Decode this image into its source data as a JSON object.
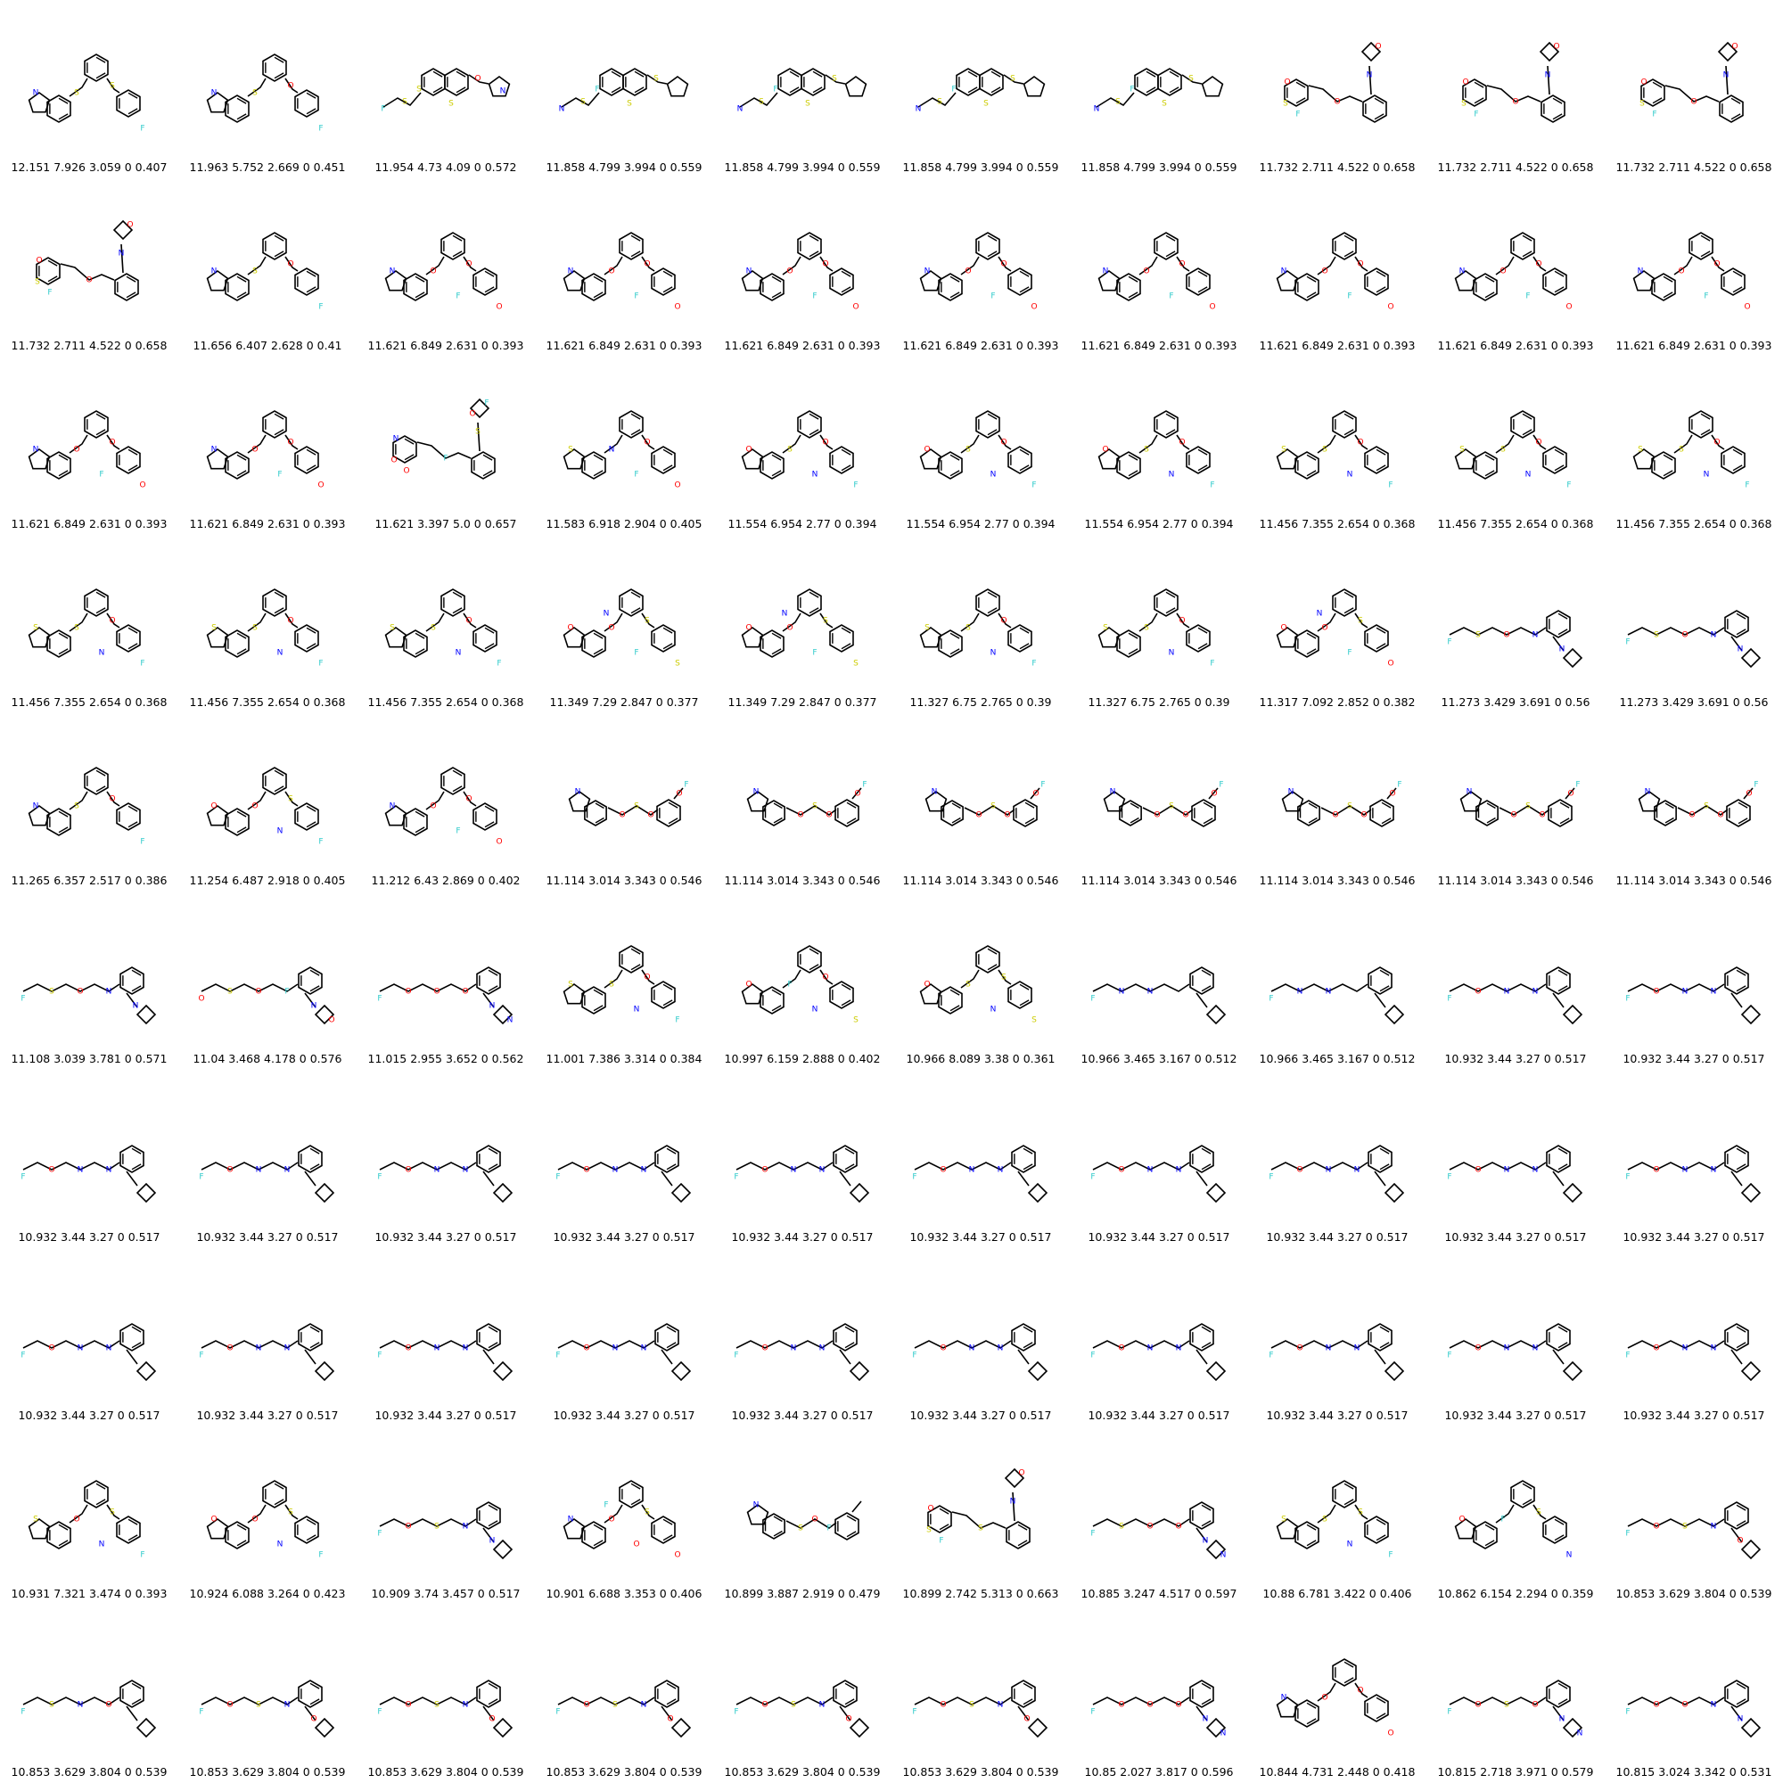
{
  "colors": {
    "bond": "#000000",
    "oxygen": "#ff0000",
    "sulfur": "#cccc00",
    "nitrogen": "#0000ff",
    "fluorine": "#33cccc"
  },
  "cells": [
    {
      "label": "12.151 7.926 3.059 0 0.407",
      "motif": "tri",
      "atoms": [
        "S",
        "S",
        "N",
        "F"
      ]
    },
    {
      "label": "11.963 5.752 2.669 0 0.451",
      "motif": "tri",
      "atoms": [
        "S",
        "O",
        "N",
        "F"
      ]
    },
    {
      "label": "11.954 4.73 4.09 0 0.572",
      "motif": "naph",
      "atoms": [
        "S",
        "O",
        "S",
        "S",
        "F",
        "N"
      ]
    },
    {
      "label": "11.858 4.799 3.994 0 0.559",
      "motif": "naph",
      "atoms": [
        "S",
        "S",
        "S",
        "F",
        "N"
      ]
    },
    {
      "label": "11.858 4.799 3.994 0 0.559",
      "motif": "naph",
      "atoms": [
        "S",
        "S",
        "S",
        "F",
        "N"
      ]
    },
    {
      "label": "11.858 4.799 3.994 0 0.559",
      "motif": "naph",
      "atoms": [
        "S",
        "S",
        "S",
        "F",
        "N"
      ]
    },
    {
      "label": "11.858 4.799 3.994 0 0.559",
      "motif": "naph",
      "atoms": [
        "S",
        "S",
        "S",
        "F",
        "N"
      ]
    },
    {
      "label": "11.732 2.711 4.522 0 0.658",
      "motif": "oxa",
      "atoms": [
        "O",
        "S",
        "F",
        "O",
        "N",
        "O"
      ]
    },
    {
      "label": "11.732 2.711 4.522 0 0.658",
      "motif": "oxa",
      "atoms": [
        "O",
        "S",
        "F",
        "O",
        "N",
        "O"
      ]
    },
    {
      "label": "11.732 2.711 4.522 0 0.658",
      "motif": "oxa",
      "atoms": [
        "O",
        "S",
        "F",
        "O",
        "N",
        "O"
      ]
    },
    {
      "label": "11.732 2.711 4.522 0 0.658",
      "motif": "oxa",
      "atoms": [
        "O",
        "S",
        "F",
        "O",
        "N",
        "O"
      ]
    },
    {
      "label": "11.656 6.407 2.628 0 0.41",
      "motif": "tri",
      "atoms": [
        "S",
        "O",
        "N",
        "F"
      ]
    },
    {
      "label": "11.621 6.849 2.631 0 0.393",
      "motif": "tri",
      "atoms": [
        "O",
        "O",
        "N",
        "O",
        "F"
      ]
    },
    {
      "label": "11.621 6.849 2.631 0 0.393",
      "motif": "tri",
      "atoms": [
        "O",
        "O",
        "N",
        "O",
        "F"
      ]
    },
    {
      "label": "11.621 6.849 2.631 0 0.393",
      "motif": "tri",
      "atoms": [
        "O",
        "O",
        "N",
        "O",
        "F"
      ]
    },
    {
      "label": "11.621 6.849 2.631 0 0.393",
      "motif": "tri",
      "atoms": [
        "O",
        "O",
        "N",
        "O",
        "F"
      ]
    },
    {
      "label": "11.621 6.849 2.631 0 0.393",
      "motif": "tri",
      "atoms": [
        "O",
        "O",
        "N",
        "O",
        "F"
      ]
    },
    {
      "label": "11.621 6.849 2.631 0 0.393",
      "motif": "tri",
      "atoms": [
        "O",
        "O",
        "N",
        "O",
        "F"
      ]
    },
    {
      "label": "11.621 6.849 2.631 0 0.393",
      "motif": "tri",
      "atoms": [
        "O",
        "O",
        "N",
        "O",
        "F"
      ]
    },
    {
      "label": "11.621 6.849 2.631 0 0.393",
      "motif": "tri",
      "atoms": [
        "O",
        "O",
        "N",
        "O",
        "F"
      ]
    },
    {
      "label": "11.621 6.849 2.631 0 0.393",
      "motif": "tri",
      "atoms": [
        "O",
        "O",
        "N",
        "O",
        "F"
      ]
    },
    {
      "label": "11.621 6.849 2.631 0 0.393",
      "motif": "tri",
      "atoms": [
        "O",
        "O",
        "N",
        "O",
        "F"
      ]
    },
    {
      "label": "11.621 3.397 5.0 0 0.657",
      "motif": "oxa",
      "atoms": [
        "N",
        "O",
        "O",
        "F",
        "S",
        "F",
        "O"
      ]
    },
    {
      "label": "11.583 6.918 2.904 0 0.405",
      "motif": "tri",
      "atoms": [
        "N",
        "O",
        "S",
        "O",
        "F"
      ]
    },
    {
      "label": "11.554 6.954 2.77 0 0.394",
      "motif": "tri",
      "atoms": [
        "S",
        "O",
        "O",
        "F",
        "N"
      ]
    },
    {
      "label": "11.554 6.954 2.77 0 0.394",
      "motif": "tri",
      "atoms": [
        "S",
        "O",
        "O",
        "F",
        "N"
      ]
    },
    {
      "label": "11.554 6.954 2.77 0 0.394",
      "motif": "tri",
      "atoms": [
        "S",
        "O",
        "O",
        "F",
        "N"
      ]
    },
    {
      "label": "11.456 7.355 2.654 0 0.368",
      "motif": "tri",
      "atoms": [
        "S",
        "O",
        "S",
        "F",
        "N"
      ]
    },
    {
      "label": "11.456 7.355 2.654 0 0.368",
      "motif": "tri",
      "atoms": [
        "S",
        "O",
        "S",
        "F",
        "N"
      ]
    },
    {
      "label": "11.456 7.355 2.654 0 0.368",
      "motif": "tri",
      "atoms": [
        "S",
        "O",
        "S",
        "F",
        "N"
      ]
    },
    {
      "label": "11.456 7.355 2.654 0 0.368",
      "motif": "tri",
      "atoms": [
        "S",
        "O",
        "S",
        "F",
        "N"
      ]
    },
    {
      "label": "11.456 7.355 2.654 0 0.368",
      "motif": "tri",
      "atoms": [
        "S",
        "O",
        "S",
        "F",
        "N"
      ]
    },
    {
      "label": "11.456 7.355 2.654 0 0.368",
      "motif": "tri",
      "atoms": [
        "S",
        "O",
        "S",
        "F",
        "N"
      ]
    },
    {
      "label": "11.349 7.29 2.847 0 0.377",
      "motif": "tri",
      "atoms": [
        "O",
        "S",
        "O",
        "S",
        "F",
        "N"
      ]
    },
    {
      "label": "11.349 7.29 2.847 0 0.377",
      "motif": "tri",
      "atoms": [
        "O",
        "S",
        "O",
        "S",
        "F",
        "N"
      ]
    },
    {
      "label": "11.327 6.75 2.765 0 0.39",
      "motif": "tri",
      "atoms": [
        "S",
        "O",
        "S",
        "F",
        "N"
      ]
    },
    {
      "label": "11.327 6.75 2.765 0 0.39",
      "motif": "tri",
      "atoms": [
        "S",
        "O",
        "S",
        "F",
        "N"
      ]
    },
    {
      "label": "11.317 7.092 2.852 0 0.382",
      "motif": "tri",
      "atoms": [
        "O",
        "S",
        "O",
        "O",
        "F",
        "N"
      ]
    },
    {
      "label": "11.273 3.429 3.691 0 0.56",
      "motif": "chain",
      "atoms": [
        "F",
        "S",
        "O",
        "N",
        "N"
      ]
    },
    {
      "label": "11.273 3.429 3.691 0 0.56",
      "motif": "chain",
      "atoms": [
        "F",
        "S",
        "O",
        "N",
        "N"
      ]
    },
    {
      "label": "11.265 6.357 2.517 0 0.386",
      "motif": "tri",
      "atoms": [
        "S",
        "O",
        "N",
        "F"
      ]
    },
    {
      "label": "11.254 6.487 2.918 0 0.405",
      "motif": "tri",
      "atoms": [
        "O",
        "S",
        "O",
        "F",
        "N"
      ]
    },
    {
      "label": "11.212 6.43 2.869 0 0.402",
      "motif": "tri",
      "atoms": [
        "O",
        "O",
        "N",
        "O",
        "F"
      ]
    },
    {
      "label": "11.114 3.014 3.343 0 0.546",
      "motif": "pair",
      "atoms": [
        "N",
        "O",
        "S",
        "O",
        "O",
        "F"
      ]
    },
    {
      "label": "11.114 3.014 3.343 0 0.546",
      "motif": "pair",
      "atoms": [
        "N",
        "O",
        "S",
        "O",
        "O",
        "F"
      ]
    },
    {
      "label": "11.114 3.014 3.343 0 0.546",
      "motif": "pair",
      "atoms": [
        "N",
        "O",
        "S",
        "O",
        "O",
        "F"
      ]
    },
    {
      "label": "11.114 3.014 3.343 0 0.546",
      "motif": "pair",
      "atoms": [
        "N",
        "O",
        "S",
        "O",
        "O",
        "F"
      ]
    },
    {
      "label": "11.114 3.014 3.343 0 0.546",
      "motif": "pair",
      "atoms": [
        "N",
        "O",
        "S",
        "O",
        "O",
        "F"
      ]
    },
    {
      "label": "11.114 3.014 3.343 0 0.546",
      "motif": "pair",
      "atoms": [
        "N",
        "O",
        "S",
        "O",
        "O",
        "F"
      ]
    },
    {
      "label": "11.114 3.014 3.343 0 0.546",
      "motif": "pair",
      "atoms": [
        "N",
        "O",
        "S",
        "O",
        "O",
        "F"
      ]
    },
    {
      "label": "11.108 3.039 3.781 0 0.571",
      "motif": "chain",
      "atoms": [
        "F",
        "S",
        "O",
        "N",
        "N"
      ]
    },
    {
      "label": "11.04 3.468 4.178 0 0.576",
      "motif": "chain",
      "atoms": [
        "O",
        "S",
        "O",
        "F",
        "N",
        "O"
      ]
    },
    {
      "label": "11.015 2.955 3.652 0 0.562",
      "motif": "chain",
      "atoms": [
        "F",
        "O",
        "O",
        "O",
        "N",
        "N"
      ]
    },
    {
      "label": "11.001 7.386 3.314 0 0.384",
      "motif": "tri",
      "atoms": [
        "S",
        "O",
        "S",
        "F",
        "N"
      ]
    },
    {
      "label": "10.997 6.159 2.888 0 0.402",
      "motif": "tri",
      "atoms": [
        "F",
        "O",
        "O",
        "S",
        "N"
      ]
    },
    {
      "label": "10.966 8.089 3.38 0 0.361",
      "motif": "tri",
      "atoms": [
        "S",
        "S",
        "O",
        "S",
        "N"
      ]
    },
    {
      "label": "10.966 3.465 3.167 0 0.512",
      "motif": "chain",
      "atoms": [
        "F",
        "N",
        "N"
      ]
    },
    {
      "label": "10.966 3.465 3.167 0 0.512",
      "motif": "chain",
      "atoms": [
        "F",
        "N",
        "N"
      ]
    },
    {
      "label": "10.932 3.44 3.27 0 0.517",
      "motif": "chain",
      "atoms": [
        "F",
        "O",
        "N",
        "N"
      ]
    },
    {
      "label": "10.932 3.44 3.27 0 0.517",
      "motif": "chain",
      "atoms": [
        "F",
        "O",
        "N",
        "N"
      ]
    },
    {
      "label": "10.932 3.44 3.27 0 0.517",
      "motif": "chain",
      "atoms": [
        "F",
        "O",
        "N",
        "N"
      ]
    },
    {
      "label": "10.932 3.44 3.27 0 0.517",
      "motif": "chain",
      "atoms": [
        "F",
        "O",
        "N",
        "N"
      ]
    },
    {
      "label": "10.932 3.44 3.27 0 0.517",
      "motif": "chain",
      "atoms": [
        "F",
        "O",
        "N",
        "N"
      ]
    },
    {
      "label": "10.932 3.44 3.27 0 0.517",
      "motif": "chain",
      "atoms": [
        "F",
        "O",
        "N",
        "N"
      ]
    },
    {
      "label": "10.932 3.44 3.27 0 0.517",
      "motif": "chain",
      "atoms": [
        "F",
        "O",
        "N",
        "N"
      ]
    },
    {
      "label": "10.932 3.44 3.27 0 0.517",
      "motif": "chain",
      "atoms": [
        "F",
        "O",
        "N",
        "N"
      ]
    },
    {
      "label": "10.932 3.44 3.27 0 0.517",
      "motif": "chain",
      "atoms": [
        "F",
        "O",
        "N",
        "N"
      ]
    },
    {
      "label": "10.932 3.44 3.27 0 0.517",
      "motif": "chain",
      "atoms": [
        "F",
        "O",
        "N",
        "N"
      ]
    },
    {
      "label": "10.932 3.44 3.27 0 0.517",
      "motif": "chain",
      "atoms": [
        "F",
        "O",
        "N",
        "N"
      ]
    },
    {
      "label": "10.932 3.44 3.27 0 0.517",
      "motif": "chain",
      "atoms": [
        "F",
        "O",
        "N",
        "N"
      ]
    },
    {
      "label": "10.932 3.44 3.27 0 0.517",
      "motif": "chain",
      "atoms": [
        "F",
        "O",
        "N",
        "N"
      ]
    },
    {
      "label": "10.932 3.44 3.27 0 0.517",
      "motif": "chain",
      "atoms": [
        "F",
        "O",
        "N",
        "N"
      ]
    },
    {
      "label": "10.932 3.44 3.27 0 0.517",
      "motif": "chain",
      "atoms": [
        "F",
        "O",
        "N",
        "N"
      ]
    },
    {
      "label": "10.932 3.44 3.27 0 0.517",
      "motif": "chain",
      "atoms": [
        "F",
        "O",
        "N",
        "N"
      ]
    },
    {
      "label": "10.932 3.44 3.27 0 0.517",
      "motif": "chain",
      "atoms": [
        "F",
        "O",
        "N",
        "N"
      ]
    },
    {
      "label": "10.932 3.44 3.27 0 0.517",
      "motif": "chain",
      "atoms": [
        "F",
        "O",
        "N",
        "N"
      ]
    },
    {
      "label": "10.932 3.44 3.27 0 0.517",
      "motif": "chain",
      "atoms": [
        "F",
        "O",
        "N",
        "N"
      ]
    },
    {
      "label": "10.932 3.44 3.27 0 0.517",
      "motif": "chain",
      "atoms": [
        "F",
        "O",
        "N",
        "N"
      ]
    },
    {
      "label": "10.932 3.44 3.27 0 0.517",
      "motif": "chain",
      "atoms": [
        "F",
        "O",
        "N",
        "N"
      ]
    },
    {
      "label": "10.932 3.44 3.27 0 0.517",
      "motif": "chain",
      "atoms": [
        "F",
        "O",
        "N",
        "N"
      ]
    },
    {
      "label": "10.931 7.321 3.474 0 0.393",
      "motif": "tri",
      "atoms": [
        "O",
        "S",
        "S",
        "F",
        "N"
      ]
    },
    {
      "label": "10.924 6.088 3.264 0 0.423",
      "motif": "tri",
      "atoms": [
        "O",
        "S",
        "O",
        "F",
        "N"
      ]
    },
    {
      "label": "10.909 3.74 3.457 0 0.517",
      "motif": "chain",
      "atoms": [
        "F",
        "O",
        "S",
        "N",
        "N"
      ]
    },
    {
      "label": "10.901 6.688 3.353 0 0.406",
      "motif": "tri",
      "atoms": [
        "O",
        "S",
        "N",
        "O",
        "O",
        "F"
      ]
    },
    {
      "label": "10.899 3.887 2.919 0 0.479",
      "motif": "pair",
      "atoms": [
        "N",
        "S",
        "O",
        "F"
      ]
    },
    {
      "label": "10.899 2.742 5.313 0 0.663",
      "motif": "oxa",
      "atoms": [
        "O",
        "S",
        "F",
        "S",
        "N",
        "O"
      ]
    },
    {
      "label": "10.885 3.247 4.517 0 0.597",
      "motif": "chain",
      "atoms": [
        "F",
        "S",
        "O",
        "O",
        "N",
        "N"
      ]
    },
    {
      "label": "10.88 6.781 3.422 0 0.406",
      "motif": "tri",
      "atoms": [
        "S",
        "S",
        "S",
        "F",
        "N"
      ]
    },
    {
      "label": "10.862 6.154 2.294 0 0.359",
      "motif": "tri",
      "atoms": [
        "F",
        "S",
        "O",
        "N"
      ]
    },
    {
      "label": "10.853 3.629 3.804 0 0.539",
      "motif": "chain",
      "atoms": [
        "F",
        "O",
        "S",
        "N",
        "O"
      ]
    },
    {
      "label": "10.853 3.629 3.804 0 0.539",
      "motif": "chain",
      "atoms": [
        "F",
        "S",
        "N",
        "O"
      ]
    },
    {
      "label": "10.853 3.629 3.804 0 0.539",
      "motif": "chain",
      "atoms": [
        "F",
        "O",
        "S",
        "N",
        "O"
      ]
    },
    {
      "label": "10.853 3.629 3.804 0 0.539",
      "motif": "chain",
      "atoms": [
        "F",
        "O",
        "S",
        "N",
        "O"
      ]
    },
    {
      "label": "10.853 3.629 3.804 0 0.539",
      "motif": "chain",
      "atoms": [
        "F",
        "O",
        "S",
        "N",
        "O"
      ]
    },
    {
      "label": "10.853 3.629 3.804 0 0.539",
      "motif": "chain",
      "atoms": [
        "F",
        "O",
        "S",
        "N",
        "O"
      ]
    },
    {
      "label": "10.853 3.629 3.804 0 0.539",
      "motif": "chain",
      "atoms": [
        "F",
        "O",
        "S",
        "N",
        "O"
      ]
    },
    {
      "label": "10.85 2.027 3.817 0 0.596",
      "motif": "chain",
      "atoms": [
        "F",
        "O",
        "O",
        "O",
        "N",
        "N"
      ]
    },
    {
      "label": "10.844 4.731 2.448 0 0.418",
      "motif": "tri",
      "atoms": [
        "O",
        "O",
        "N",
        "O"
      ]
    },
    {
      "label": "10.815 2.718 3.971 0 0.579",
      "motif": "chain",
      "atoms": [
        "F",
        "O",
        "S",
        "O",
        "N",
        "N"
      ]
    },
    {
      "label": "10.815 3.024 3.342 0 0.531",
      "motif": "chain",
      "atoms": [
        "F",
        "O",
        "O",
        "N",
        "N"
      ]
    }
  ]
}
